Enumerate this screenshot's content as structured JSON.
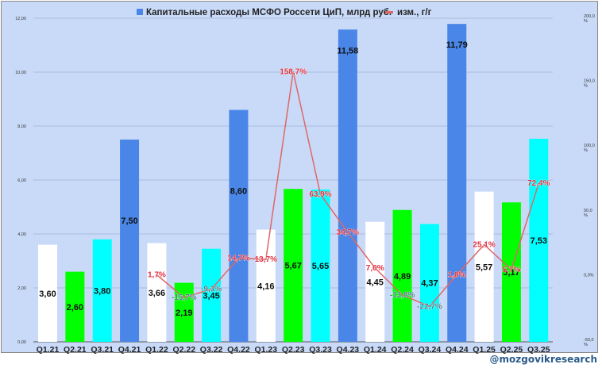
{
  "chart_data": {
    "type": "bar",
    "title": "",
    "legend": [
      {
        "label": "Капитальные расходы МСФО Россети ЦиП, млрд руб.",
        "kind": "bar",
        "color": "#4a86e8"
      },
      {
        "label": "изм., г/г",
        "kind": "line",
        "color": "#e06666"
      }
    ],
    "legend_position": "top",
    "categories": [
      "Q1.21",
      "Q2.21",
      "Q3.21",
      "Q4.21",
      "Q1.22",
      "Q2.22",
      "Q3.22",
      "Q4.22",
      "Q1.23",
      "Q2.23",
      "Q3.23",
      "Q4.23",
      "Q1.24",
      "Q2.24",
      "Q3.24",
      "Q4.24",
      "Q1.25",
      "Q2.25",
      "Q3.25"
    ],
    "series": [
      {
        "name": "Капитальные расходы МСФО Россети ЦиП, млрд руб.",
        "axis": "left",
        "type": "bar",
        "values": [
          3.6,
          2.6,
          3.8,
          7.5,
          3.66,
          2.19,
          3.45,
          8.6,
          4.16,
          5.67,
          5.65,
          11.58,
          4.45,
          4.89,
          4.37,
          11.79,
          5.57,
          5.17,
          7.53
        ],
        "labels": [
          "3,60",
          "2,60",
          "3,80",
          "7,50",
          "3,66",
          "2,19",
          "3,45",
          "8,60",
          "4,16",
          "5,67",
          "5,65",
          "11,58",
          "4,45",
          "4,89",
          "4,37",
          "11,79",
          "5,57",
          "5,17",
          "7,53"
        ],
        "quarter_colors": {
          "Q1": "#ffffff",
          "Q2": "#00ff00",
          "Q3": "#00ffff",
          "Q4": "#4a86e8"
        }
      },
      {
        "name": "изм., г/г",
        "axis": "right",
        "type": "line",
        "color": "#e06666",
        "values": [
          null,
          null,
          null,
          null,
          1.7,
          -15.7,
          -9.3,
          14.7,
          13.7,
          158.7,
          63.9,
          34.7,
          7.0,
          -13.8,
          -22.7,
          1.8,
          25.1,
          5.7,
          72.4
        ],
        "labels": [
          "",
          "",
          "",
          "",
          "1,7%",
          "-15,7%",
          "-9,3%",
          "14,7%",
          "13,7%",
          "158,7%",
          "63,9%",
          "34,7%",
          "7,0%",
          "-13,8%",
          "-22,7%",
          "1,8%",
          "25,1%",
          "5,7%",
          "72,4%"
        ]
      }
    ],
    "y_left": {
      "min": 0,
      "max": 12,
      "ticks": [
        "0,00",
        "2,00",
        "4,00",
        "6,00",
        "8,00",
        "10,00",
        "12,00"
      ]
    },
    "y_right": {
      "min": -50,
      "max": 200,
      "ticks": [
        "-50,0 %",
        "0,0%",
        "50,0 %",
        "100,0 %",
        "150,0 %",
        "200,0 %"
      ]
    },
    "xlabel": "",
    "ylabel": "",
    "grid": true
  },
  "colors": {
    "background": "#c9daf8",
    "grid": "#a9bcdc",
    "positive_label": "#e03040",
    "negative_label": "#4a7a8a"
  },
  "watermark": "@mozgovikresearch"
}
